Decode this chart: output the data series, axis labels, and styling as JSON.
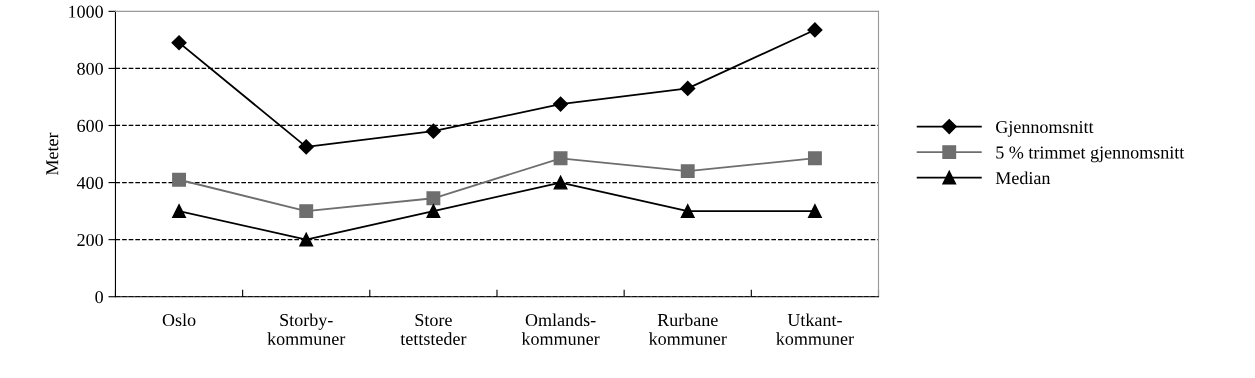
{
  "chart_data": {
    "type": "line",
    "ylabel": "Meter",
    "categories": [
      "Oslo",
      "Storby-\nkommuner",
      "Store\ntettsteder",
      "Omlands-\nkommuner",
      "Rurbane\nkommuner",
      "Utkant-\nkommuner"
    ],
    "series": [
      {
        "name": "Gjennomsnitt",
        "color": "#000000",
        "marker": "diamond",
        "values": [
          890,
          525,
          580,
          675,
          730,
          935
        ]
      },
      {
        "name": "5 % trimmet gjennomsnitt",
        "color": "#6e6e6e",
        "marker": "square",
        "values": [
          410,
          300,
          345,
          485,
          440,
          485
        ]
      },
      {
        "name": "Median",
        "color": "#000000",
        "marker": "triangle",
        "values": [
          300,
          200,
          300,
          400,
          300,
          300
        ]
      }
    ],
    "ylim": [
      0,
      1000
    ],
    "yticks": [
      0,
      200,
      400,
      600,
      800,
      1000
    ],
    "grid": "y",
    "legend": "right",
    "line_style": "solid"
  }
}
